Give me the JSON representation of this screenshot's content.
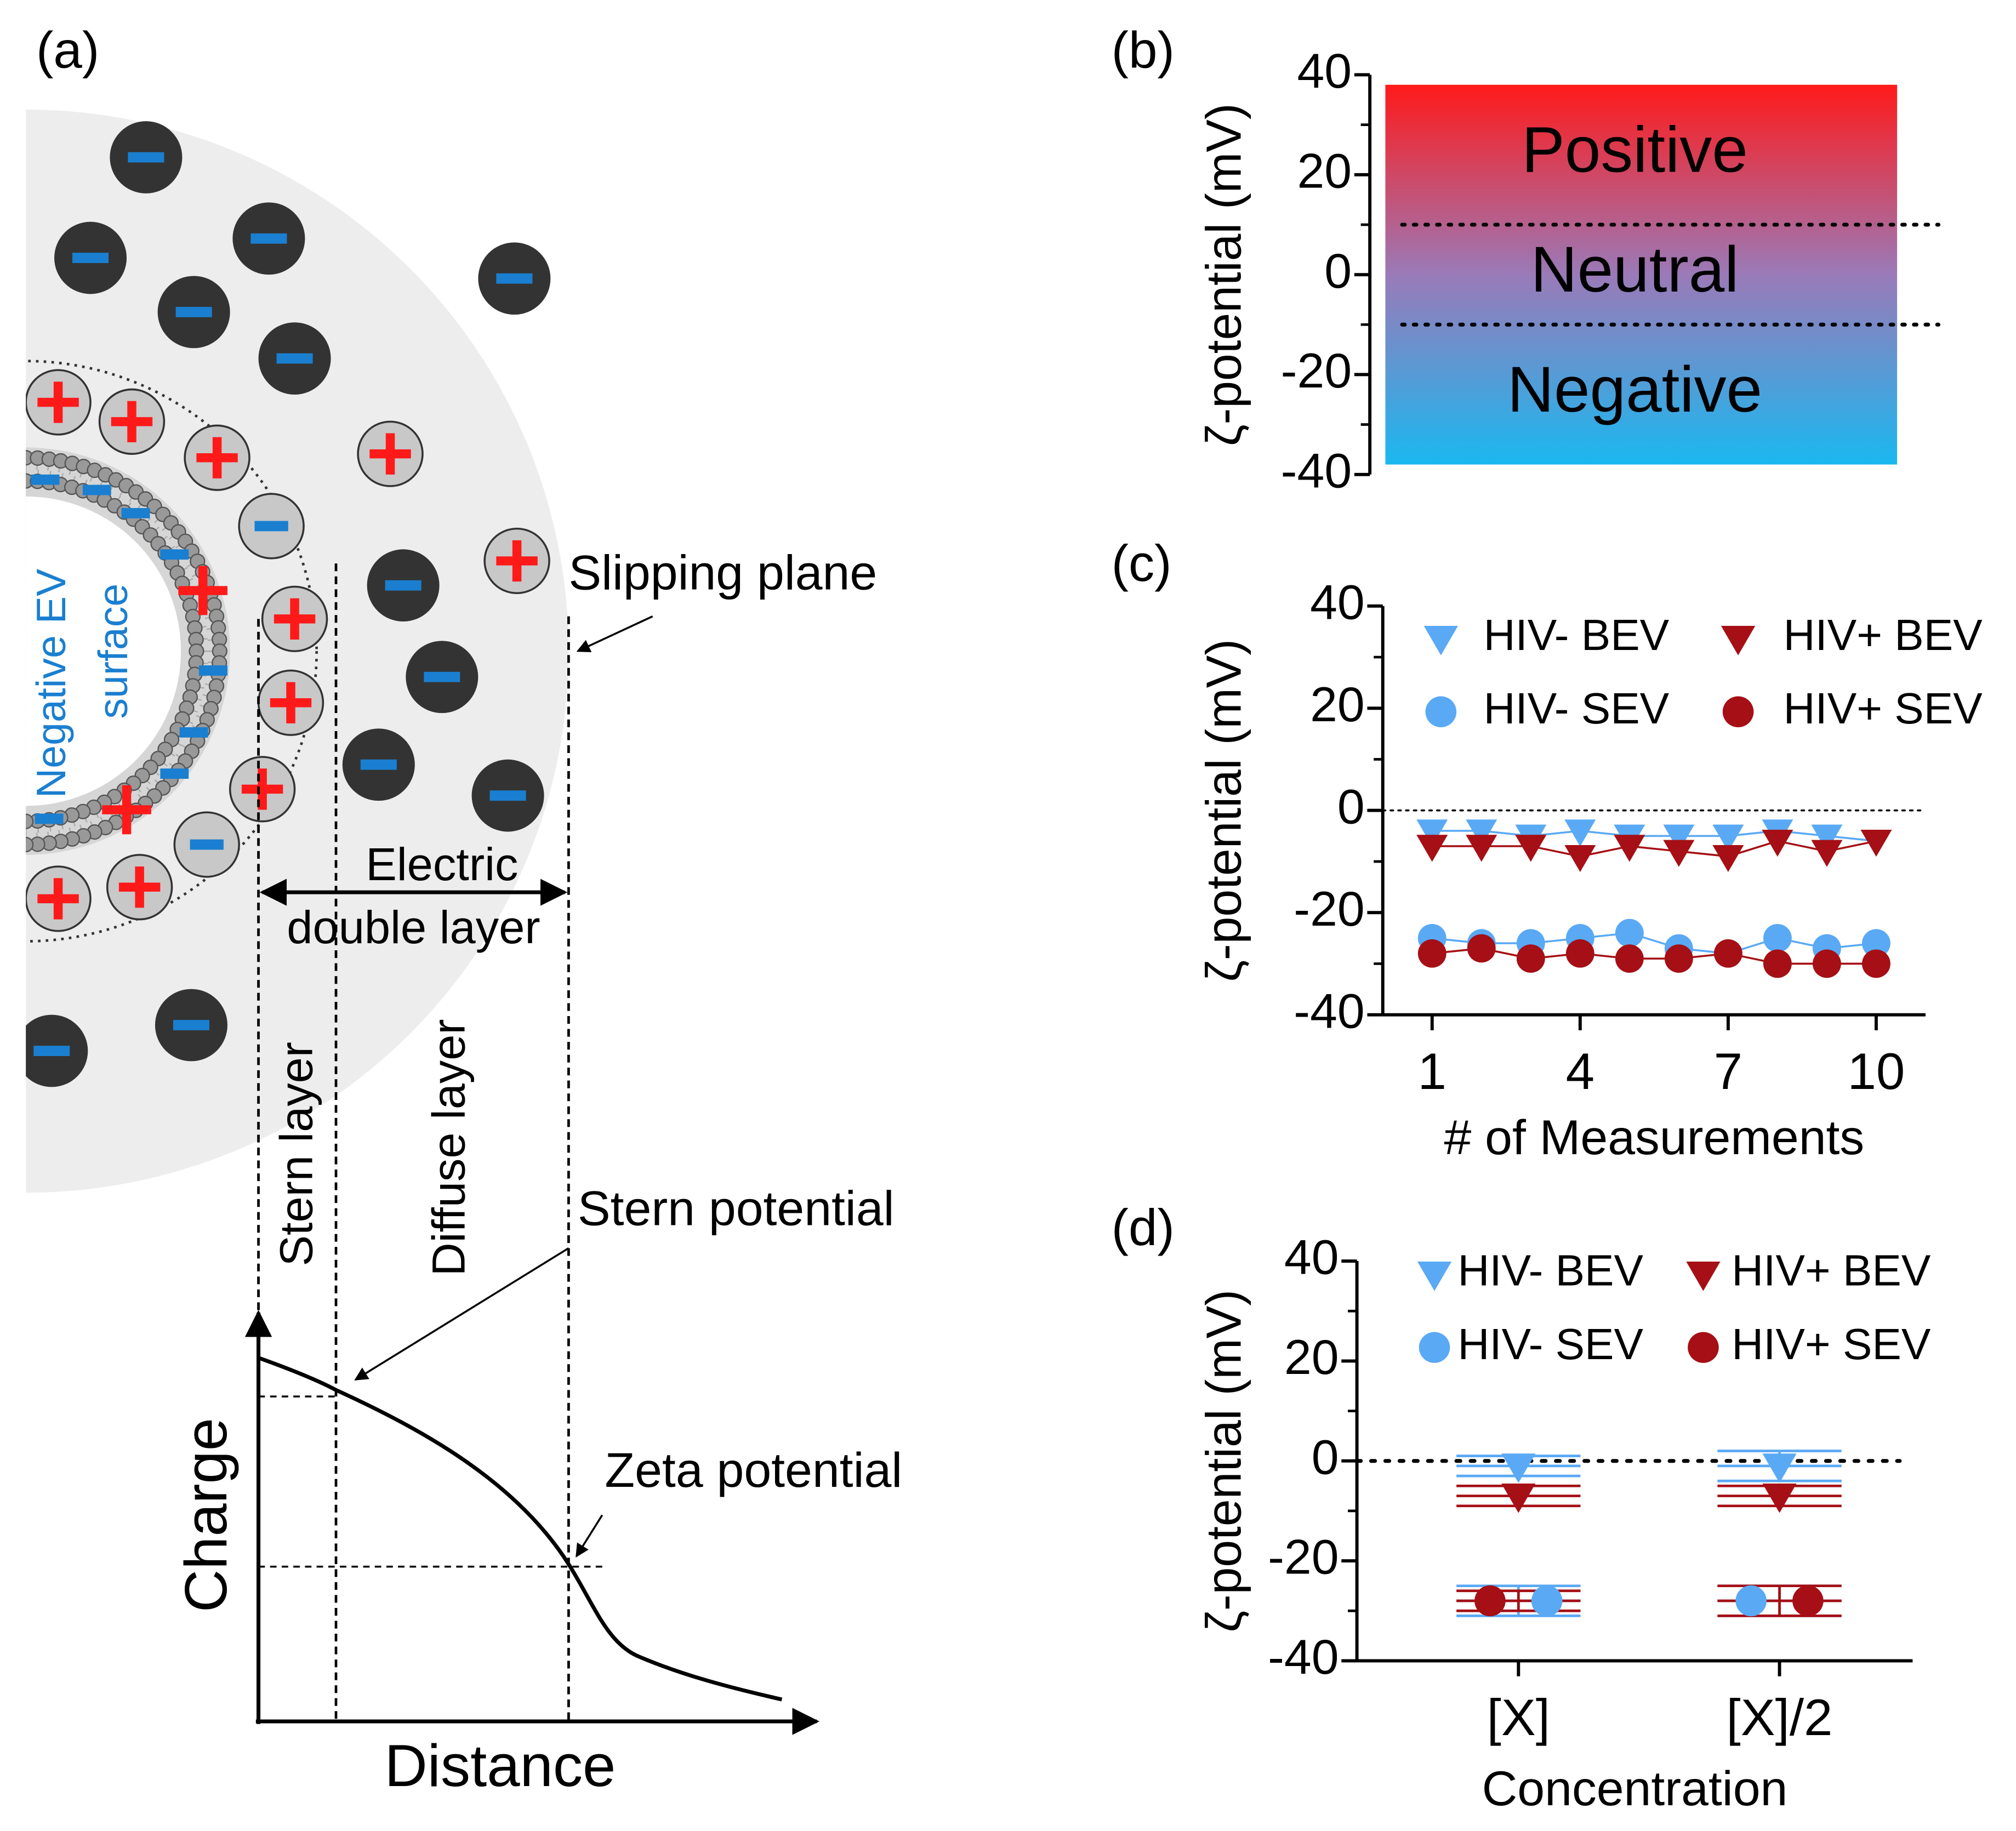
{
  "diagram": {
    "label": "(a)",
    "slipping_plane": "Slipping plane",
    "negative_ev_surface": [
      "Negative EV",
      "surface"
    ],
    "electric_double_layer": [
      "Electric",
      "double layer"
    ],
    "stern_layer": "Stern layer",
    "diffuse_layer": "Diffuse layer",
    "stern_potential": "Stern potential",
    "zeta_potential": "Zeta potential",
    "charge": "Charge",
    "distance": "Distance"
  },
  "chart_data": [
    {
      "type": "zones",
      "label": "(b)",
      "ylabel": "ζ-potential (mV)",
      "ylim": [
        -40,
        40
      ],
      "yticks": [
        40,
        20,
        0,
        -20,
        -40
      ],
      "categories": [
        "Positive",
        "Neutral",
        "Negative"
      ],
      "bounds": [
        38,
        10,
        -10,
        -38
      ],
      "colors": [
        "#ff1a1a",
        "#9a7ab8",
        "#1ab8f0"
      ],
      "threshold_style": "dotted"
    },
    {
      "type": "line",
      "label": "(c)",
      "ylabel": "ζ-potential (mV)",
      "xlabel": "# of Measurements",
      "xlim": [
        0,
        11
      ],
      "xticks": [
        1,
        4,
        7,
        10
      ],
      "ylim": [
        -40,
        40
      ],
      "yticks": [
        40,
        20,
        0,
        -20,
        -40
      ],
      "reference_line": 0,
      "legend": "top",
      "x": [
        1,
        2,
        3,
        4,
        5,
        6,
        7,
        8,
        9,
        10
      ],
      "series": [
        {
          "name": "HIV- BEV",
          "color": "#5aa9f5",
          "marker": "triangle-down",
          "values": [
            -4,
            -4,
            -5,
            -4,
            -5,
            -5,
            -5,
            -4,
            -5,
            -6
          ]
        },
        {
          "name": "HIV+ BEV",
          "color": "#a50f15",
          "marker": "triangle-down",
          "values": [
            -7,
            -7,
            -7,
            -9,
            -7,
            -8,
            -9,
            -6,
            -8,
            -6
          ]
        },
        {
          "name": "HIV- SEV",
          "color": "#5aa9f5",
          "marker": "circle",
          "values": [
            -25,
            -26,
            -26,
            -25,
            -24,
            -27,
            -28,
            -25,
            -27,
            -26
          ]
        },
        {
          "name": "HIV+ SEV",
          "color": "#a50f15",
          "marker": "circle",
          "values": [
            -28,
            -27,
            -29,
            -28,
            -29,
            -29,
            -28,
            -30,
            -30,
            -30
          ]
        }
      ]
    },
    {
      "type": "errorbar",
      "label": "(d)",
      "ylabel": "ζ-potential (mV)",
      "xlabel": "Concentration",
      "ylim": [
        -40,
        40
      ],
      "yticks": [
        40,
        20,
        0,
        -20,
        -40
      ],
      "reference_line": 0,
      "legend": "top",
      "categories": [
        "[X]",
        "[X]/2"
      ],
      "series": [
        {
          "name": "HIV- BEV",
          "color": "#5aa9f5",
          "marker": "triangle-down",
          "values": [
            -1,
            -1
          ],
          "errors": [
            2,
            3
          ]
        },
        {
          "name": "HIV+ BEV",
          "color": "#a50f15",
          "marker": "triangle-down",
          "values": [
            -7,
            -7
          ],
          "errors": [
            2,
            2
          ]
        },
        {
          "name": "HIV- SEV",
          "color": "#5aa9f5",
          "marker": "circle",
          "values": [
            -28,
            -28
          ],
          "errors": [
            3,
            3
          ]
        },
        {
          "name": "HIV+ SEV",
          "color": "#a50f15",
          "marker": "circle",
          "values": [
            -28,
            -28
          ],
          "errors": [
            2,
            3
          ]
        }
      ]
    }
  ]
}
